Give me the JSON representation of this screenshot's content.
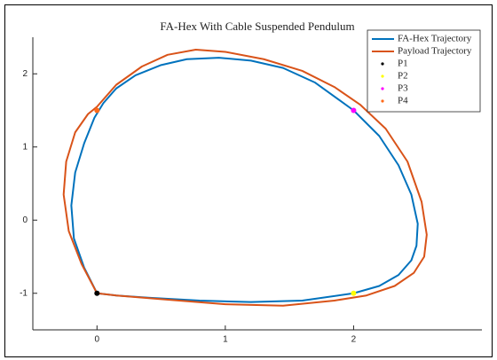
{
  "chart_data": {
    "type": "line",
    "title": "FA-Hex With Cable Suspended Pendulum",
    "xlim": [
      -0.5,
      3
    ],
    "ylim": [
      -1.5,
      2.5
    ],
    "xticks": [
      0,
      1,
      2
    ],
    "yticks": [
      -1,
      0,
      1,
      2
    ],
    "legend": "northeast",
    "series": [
      {
        "name": "FA-Hex Trajectory",
        "color": "#0072bd",
        "mode": "line",
        "x": [
          0,
          -0.1,
          -0.18,
          -0.2,
          -0.17,
          -0.1,
          -0.02,
          0.05,
          0.15,
          0.3,
          0.5,
          0.7,
          0.95,
          1.2,
          1.45,
          1.7,
          2.0,
          2.2,
          2.35,
          2.45,
          2.5,
          2.49,
          2.45,
          2.35,
          2.2,
          2.0,
          1.6,
          1.2,
          0.8,
          0.4,
          0.15,
          0
        ],
        "values": [
          -1,
          -0.65,
          -0.25,
          0.2,
          0.65,
          1.05,
          1.4,
          1.6,
          1.8,
          1.98,
          2.12,
          2.2,
          2.22,
          2.18,
          2.08,
          1.88,
          1.5,
          1.15,
          0.75,
          0.35,
          -0.05,
          -0.35,
          -0.55,
          -0.75,
          -0.9,
          -1.0,
          -1.1,
          -1.12,
          -1.1,
          -1.06,
          -1.03,
          -1
        ]
      },
      {
        "name": "Payload Trajectory",
        "color": "#d95319",
        "mode": "line",
        "x": [
          0,
          -0.12,
          -0.22,
          -0.26,
          -0.24,
          -0.17,
          -0.07,
          0,
          0.15,
          0.35,
          0.55,
          0.77,
          1.0,
          1.3,
          1.6,
          1.85,
          2.05,
          2.25,
          2.42,
          2.53,
          2.57,
          2.55,
          2.47,
          2.32,
          2.1,
          1.85,
          1.45,
          1.0,
          0.5,
          0.15,
          0
        ],
        "values": [
          -1,
          -0.6,
          -0.15,
          0.35,
          0.8,
          1.2,
          1.45,
          1.55,
          1.85,
          2.1,
          2.26,
          2.33,
          2.3,
          2.2,
          2.04,
          1.82,
          1.58,
          1.25,
          0.8,
          0.25,
          -0.2,
          -0.5,
          -0.72,
          -0.9,
          -1.03,
          -1.1,
          -1.17,
          -1.15,
          -1.08,
          -1.03,
          -1
        ]
      },
      {
        "name": "P1",
        "color": "#000000",
        "mode": "marker",
        "x": [
          0
        ],
        "values": [
          -1
        ]
      },
      {
        "name": "P2",
        "color": "#ffff00",
        "mode": "marker",
        "x": [
          2
        ],
        "values": [
          -1
        ]
      },
      {
        "name": "P3",
        "color": "#ff00ff",
        "mode": "marker",
        "x": [
          2
        ],
        "values": [
          1.5
        ]
      },
      {
        "name": "P4",
        "color": "#ff6a1a",
        "mode": "marker",
        "x": [
          0
        ],
        "values": [
          1.5
        ]
      }
    ]
  }
}
